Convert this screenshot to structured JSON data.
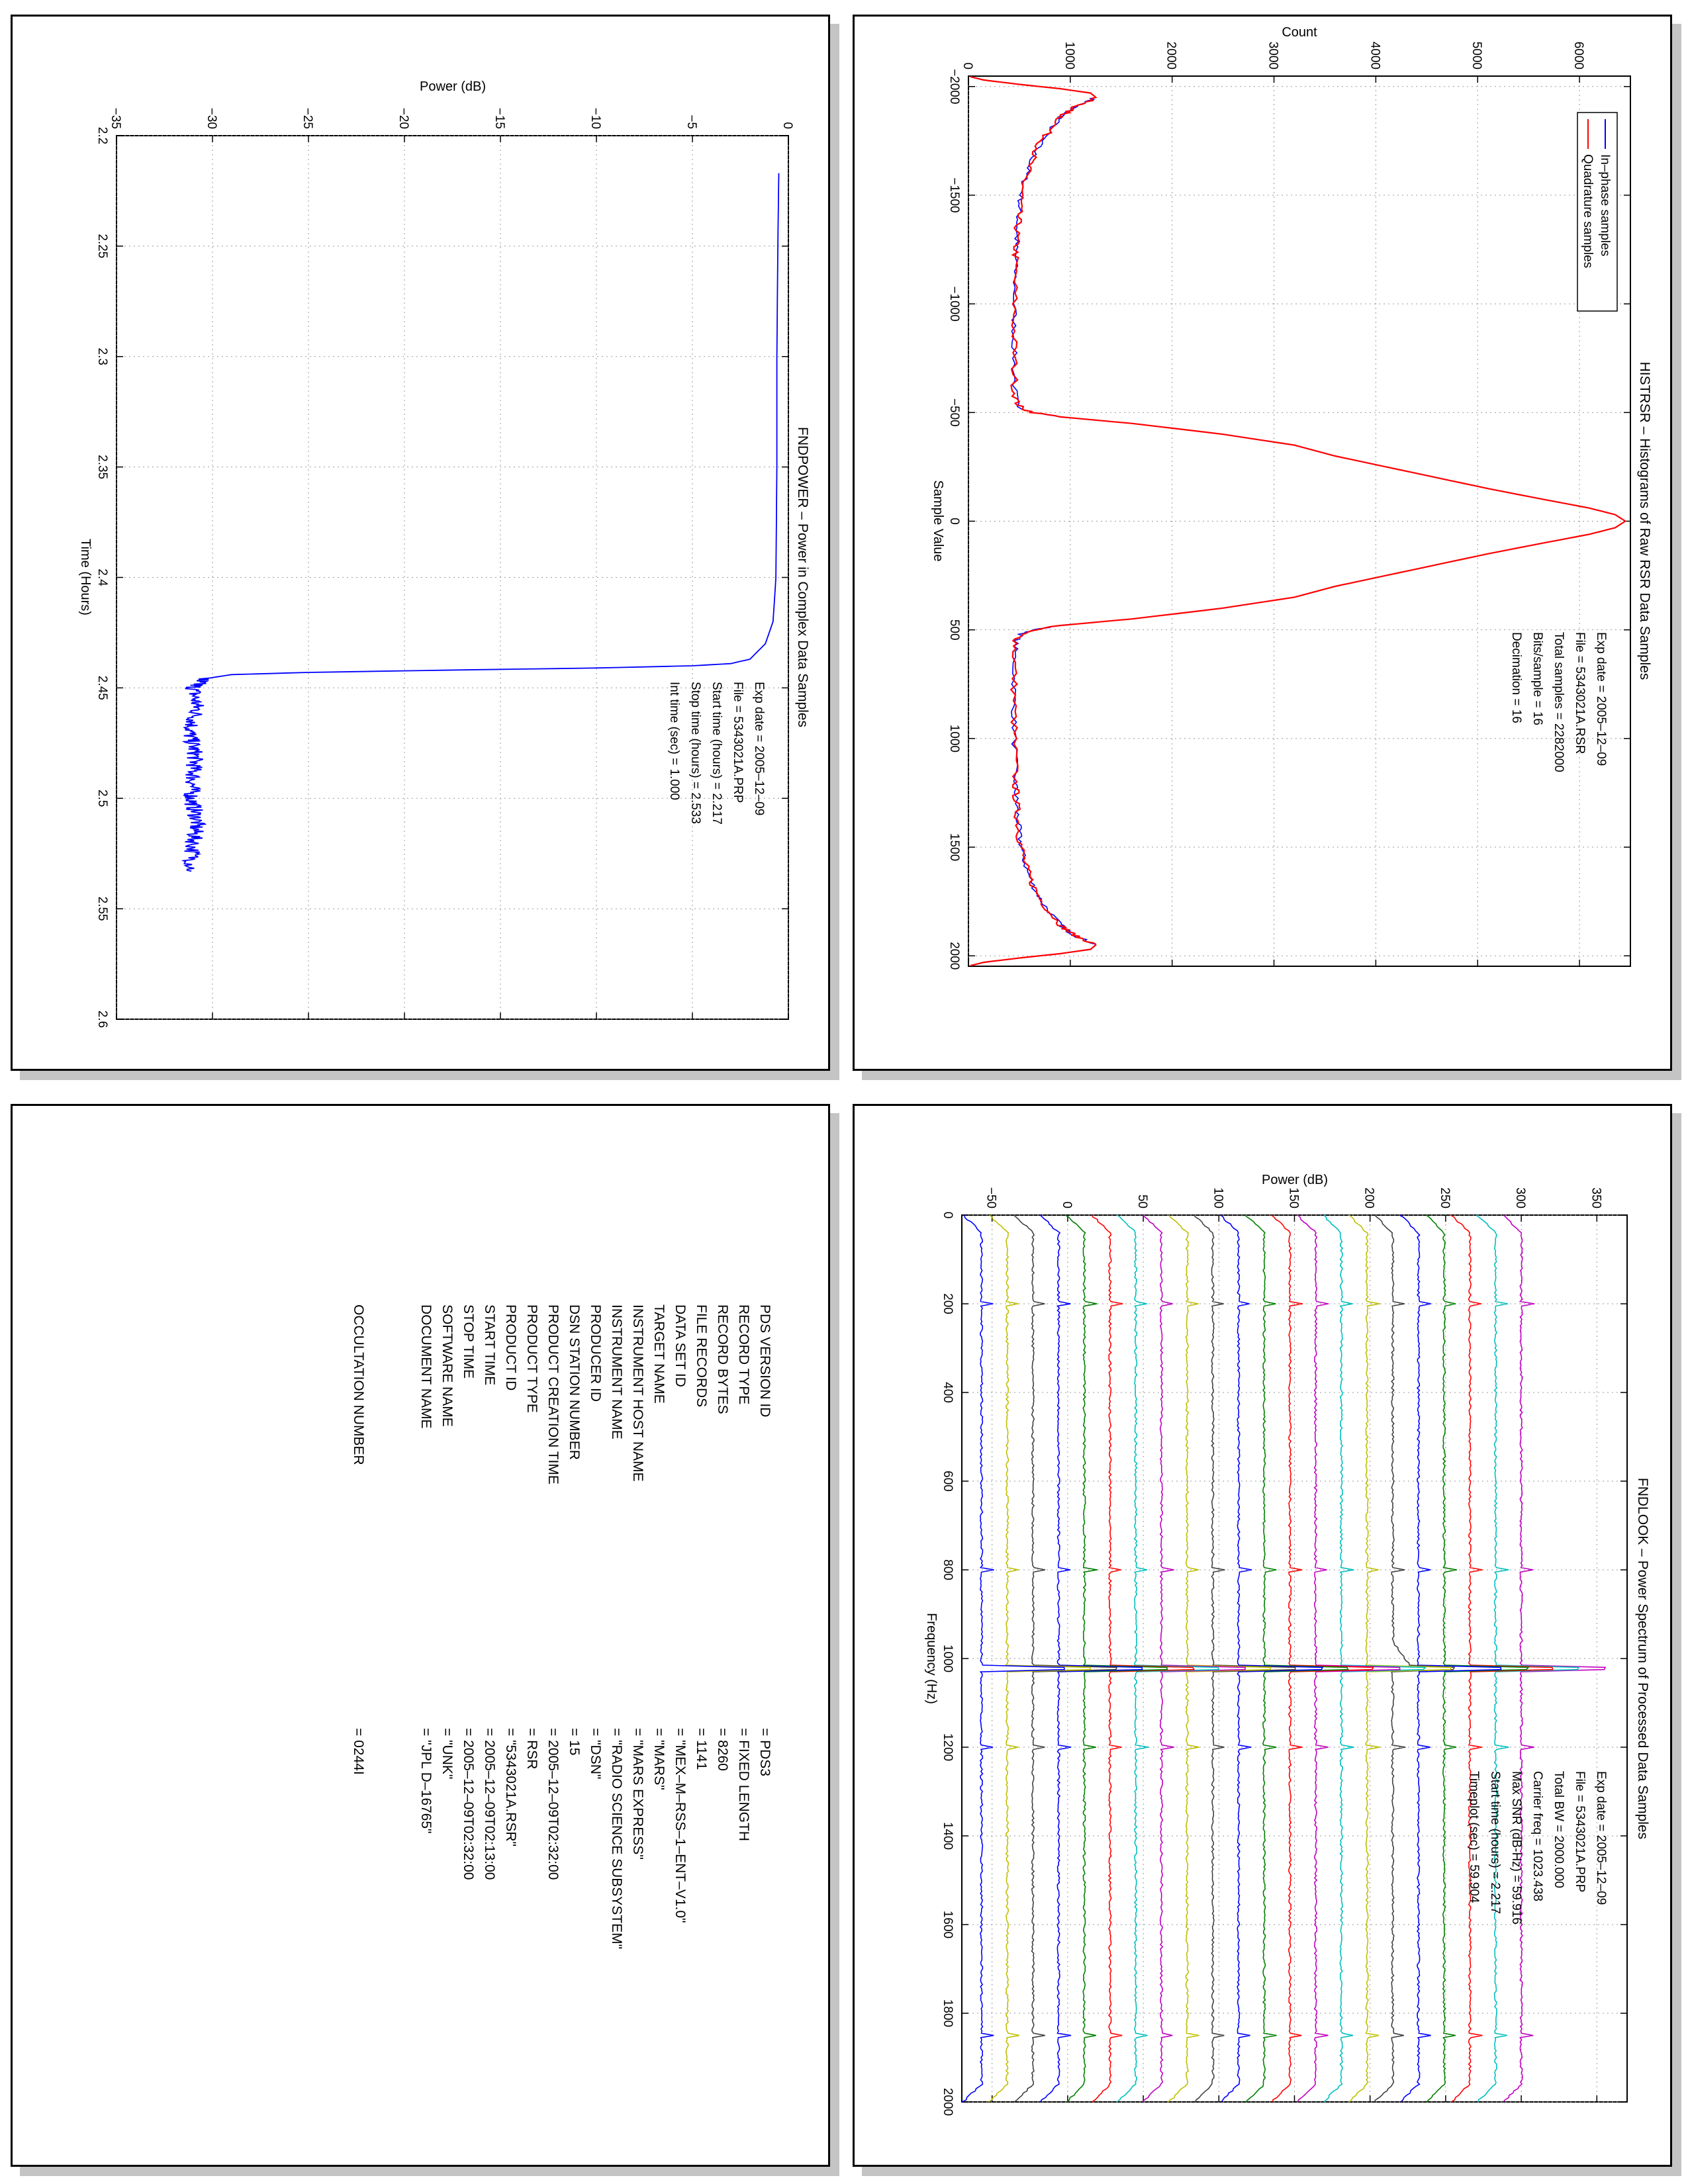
{
  "chart_data": [
    {
      "id": "histrsr",
      "type": "line",
      "title": "HISTRSR – Histograms of Raw RSR Data Samples",
      "xlabel": "Sample Value",
      "ylabel": "Count",
      "xlim": [
        -2048,
        2048
      ],
      "ylim": [
        0,
        6500
      ],
      "xticks": [
        -2000,
        -1500,
        -1000,
        -500,
        0,
        500,
        1000,
        1500,
        2000
      ],
      "yticks": [
        0,
        1000,
        2000,
        3000,
        4000,
        5000,
        6000
      ],
      "grid": true,
      "legend_placement": "top-left",
      "annotations": [
        "Exp date = 2005–12–09",
        "File = 5343021A.RSR",
        "Total samples =  2282000",
        "Bits/sample  =      16",
        "Decimation   =      16"
      ],
      "series": [
        {
          "name": "In–phase samples",
          "color": "#0000ff",
          "x": [
            -2045,
            -2030,
            -2010,
            -1990,
            -1970,
            -1950,
            -1930,
            -1910,
            -1890,
            -1870,
            -1850,
            -1800,
            -1750,
            -1700,
            -1650,
            -1600,
            -1550,
            -1500,
            -1450,
            -1400,
            -1350,
            -1300,
            -1250,
            -1200,
            -1100,
            -1000,
            -900,
            -800,
            -700,
            -600,
            -550,
            -520,
            -500,
            -480,
            -450,
            -400,
            -350,
            -300,
            -250,
            -200,
            -150,
            -100,
            -60,
            -30,
            0,
            30,
            60,
            100,
            150,
            200,
            250,
            300,
            350,
            400,
            450,
            480,
            500,
            520,
            550,
            600,
            700,
            800,
            900,
            1000,
            1100,
            1200,
            1250,
            1300,
            1350,
            1400,
            1450,
            1500,
            1550,
            1600,
            1650,
            1700,
            1750,
            1800,
            1850,
            1870,
            1890,
            1910,
            1930,
            1950,
            1970,
            1990,
            2010,
            2030,
            2045
          ],
          "y": [
            20,
            150,
            500,
            900,
            1200,
            1250,
            1160,
            1060,
            990,
            930,
            890,
            800,
            720,
            660,
            610,
            570,
            540,
            520,
            500,
            490,
            480,
            470,
            465,
            460,
            455,
            450,
            448,
            448,
            450,
            455,
            470,
            520,
            640,
            900,
            1600,
            2500,
            3200,
            3600,
            4100,
            4600,
            5100,
            5650,
            6100,
            6350,
            6450,
            6350,
            6100,
            5650,
            5100,
            4600,
            4100,
            3600,
            3200,
            2500,
            1600,
            900,
            640,
            520,
            470,
            455,
            450,
            448,
            448,
            450,
            455,
            460,
            465,
            470,
            480,
            490,
            500,
            520,
            540,
            570,
            610,
            660,
            720,
            800,
            890,
            930,
            990,
            1060,
            1160,
            1250,
            1200,
            900,
            500,
            150,
            20
          ]
        },
        {
          "name": "Quadrature samples",
          "color": "#ff0000",
          "x": [
            -2045,
            -2030,
            -2010,
            -1990,
            -1970,
            -1950,
            -1930,
            -1910,
            -1890,
            -1870,
            -1850,
            -1800,
            -1750,
            -1700,
            -1650,
            -1600,
            -1550,
            -1500,
            -1450,
            -1400,
            -1350,
            -1300,
            -1250,
            -1200,
            -1100,
            -1000,
            -900,
            -800,
            -700,
            -600,
            -550,
            -520,
            -500,
            -480,
            -450,
            -400,
            -350,
            -300,
            -250,
            -200,
            -150,
            -100,
            -60,
            -30,
            0,
            30,
            60,
            100,
            150,
            200,
            250,
            300,
            350,
            400,
            450,
            480,
            500,
            520,
            550,
            600,
            700,
            800,
            900,
            1000,
            1100,
            1200,
            1250,
            1300,
            1350,
            1400,
            1450,
            1500,
            1550,
            1600,
            1650,
            1700,
            1750,
            1800,
            1850,
            1870,
            1890,
            1910,
            1930,
            1950,
            1970,
            1990,
            2010,
            2030,
            2045
          ],
          "y": [
            20,
            150,
            500,
            900,
            1200,
            1250,
            1160,
            1060,
            990,
            930,
            890,
            800,
            720,
            660,
            610,
            570,
            540,
            520,
            500,
            490,
            480,
            470,
            465,
            460,
            455,
            450,
            448,
            448,
            450,
            455,
            470,
            520,
            640,
            900,
            1600,
            2500,
            3200,
            3600,
            4100,
            4600,
            5100,
            5650,
            6100,
            6350,
            6450,
            6350,
            6100,
            5650,
            5100,
            4600,
            4100,
            3600,
            3200,
            2500,
            1600,
            900,
            640,
            520,
            470,
            455,
            450,
            448,
            448,
            450,
            455,
            460,
            465,
            470,
            480,
            490,
            500,
            520,
            540,
            570,
            610,
            660,
            720,
            800,
            890,
            930,
            990,
            1060,
            1160,
            1250,
            1200,
            900,
            500,
            150,
            20
          ]
        }
      ]
    },
    {
      "id": "fndpower",
      "type": "line",
      "title": "FNDPOWER – Power in Complex Data Samples",
      "xlabel": "Time (Hours)",
      "ylabel": "Power (dB)",
      "xlim": [
        2.2,
        2.6
      ],
      "ylim": [
        -35,
        0
      ],
      "xticks": [
        2.2,
        2.25,
        2.3,
        2.35,
        2.4,
        2.45,
        2.5,
        2.55,
        2.6
      ],
      "yticks": [
        -35,
        -30,
        -25,
        -20,
        -15,
        -10,
        -5,
        0
      ],
      "grid": true,
      "annotations": [
        "Exp date = 2005–12–09",
        "File = 5343021A.PRP",
        "Start time (hours) =   2.217",
        "Stop time (hours) =   2.533",
        "Int time (sec) =      1.000"
      ],
      "series": [
        {
          "color": "#0000ff",
          "x": [
            2.217,
            2.25,
            2.3,
            2.35,
            2.4,
            2.42,
            2.43,
            2.437,
            2.439,
            2.44,
            2.441,
            2.442,
            2.443,
            2.444,
            2.446,
            2.45,
            2.46,
            2.47,
            2.48,
            2.49,
            2.5,
            2.51,
            2.52,
            2.533
          ],
          "y": [
            -0.5,
            -0.55,
            -0.6,
            -0.6,
            -0.65,
            -0.8,
            -1.2,
            -2.0,
            -3.0,
            -5.0,
            -10.0,
            -18.0,
            -25.0,
            -29.0,
            -30.5,
            -31.0,
            -30.8,
            -31.2,
            -30.9,
            -31.0,
            -31.1,
            -30.8,
            -31.0,
            -31.1
          ]
        }
      ]
    },
    {
      "id": "fndlook",
      "type": "line",
      "title": "FNDLOOK – Power Spectrum of Processed Data Samples",
      "xlabel": "Frequency (Hz)",
      "ylabel": "Power (dB)",
      "xlim": [
        0,
        2000
      ],
      "ylim": [
        -70,
        370
      ],
      "xticks": [
        0,
        200,
        400,
        600,
        800,
        1000,
        1200,
        1400,
        1600,
        1800,
        2000
      ],
      "yticks": [
        -50,
        0,
        50,
        100,
        150,
        200,
        250,
        300,
        350
      ],
      "grid": true,
      "annotations": [
        "Exp date = 2005–12–09",
        "File = 5343021A.PRP",
        "Total BW =      2000.000",
        "Carrier freq =   1023.438",
        "Max SNR (dB-Hz) =   59.916",
        "Start time (hours) =   2.217",
        "Timeplot (sec) =   59.904"
      ],
      "trace_offsets": [
        300,
        283,
        266,
        249,
        232,
        215,
        198,
        181,
        164,
        147,
        130,
        113,
        96,
        79,
        62,
        45,
        28,
        11,
        -6,
        -23,
        -40,
        -57
      ],
      "trace_colors": [
        "#bf00bf",
        "#00bfbf",
        "#ff0000",
        "#008000",
        "#0000ff",
        "#404040",
        "#bfbf00",
        "#00bfbf",
        "#bf00bf",
        "#ff0000",
        "#008000",
        "#0000ff",
        "#404040",
        "#bfbf00",
        "#bf00bf",
        "#00bfbf",
        "#ff0000",
        "#008000",
        "#0000ff",
        "#404040",
        "#bfbf00",
        "#0000ff"
      ],
      "carrier_trace_index": 5,
      "carrier_freq": 1023.438,
      "spur_freqs": [
        200,
        800,
        1200,
        1850
      ]
    }
  ],
  "labels": [
    {
      "key": "PDS VERSION ID",
      "value": "=  PDS3"
    },
    {
      "key": "RECORD TYPE",
      "value": "=  FIXED LENGTH"
    },
    {
      "key": "RECORD BYTES",
      "value": "=  8260"
    },
    {
      "key": "FILE RECORDS",
      "value": "=  1141"
    },
    {
      "key": "DATA SET ID",
      "value": "=  \"MEX–M–RSS–1–ENT–V1.0\""
    },
    {
      "key": "TARGET NAME",
      "value": "=  \"MARS\""
    },
    {
      "key": "INSTRUMENT HOST NAME",
      "value": "=  \"MARS EXPRESS\""
    },
    {
      "key": "INSTRUMENT NAME",
      "value": "=  \"RADIO SCIENCE SUBSYSTEM\""
    },
    {
      "key": "PRODUCER ID",
      "value": "=  \"DSN\""
    },
    {
      "key": "DSN STATION NUMBER",
      "value": "=  15"
    },
    {
      "key": "PRODUCT CREATION TIME",
      "value": "=  2005–12–09T02:32:00"
    },
    {
      "key": "PRODUCT TYPE",
      "value": "=  RSR"
    },
    {
      "key": "PRODUCT ID",
      "value": "=  \"5343021A.RSR\""
    },
    {
      "key": "START TIME",
      "value": "=  2005–12–09T02:13:00"
    },
    {
      "key": "STOP TIME",
      "value": "=  2005–12–09T02:32:00"
    },
    {
      "key": "SOFTWARE NAME",
      "value": "=  \"UNK\""
    },
    {
      "key": "DOCUMENT NAME",
      "value": "=  \"JPL D–16765\""
    },
    {
      "key": "OCCULTATION NUMBER",
      "value": "=  0244I"
    }
  ]
}
